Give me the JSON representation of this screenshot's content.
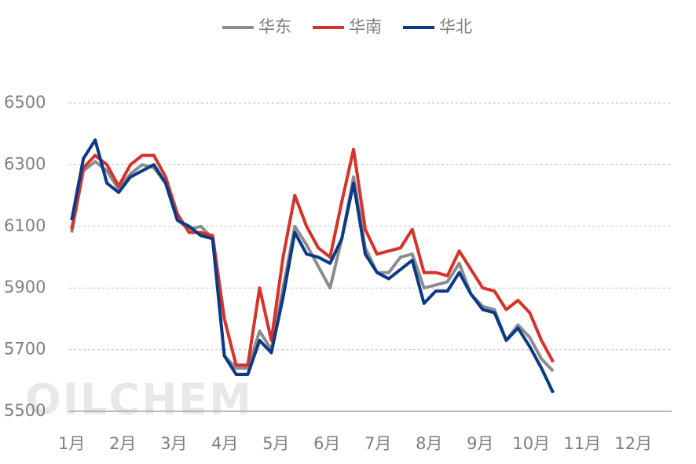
{
  "chart_data": {
    "type": "line",
    "watermark": "OILCHEM",
    "x": [
      1,
      1.23,
      1.46,
      1.69,
      1.92,
      2.15,
      2.38,
      2.61,
      2.84,
      3.07,
      3.3,
      3.53,
      3.76,
      3.99,
      4.22,
      4.45,
      4.68,
      4.91,
      5.14,
      5.37,
      5.6,
      5.83,
      6.06,
      6.29,
      6.52,
      6.75,
      6.98,
      7.21,
      7.44,
      7.67,
      7.9,
      8.13,
      8.36,
      8.59,
      8.82,
      9.05,
      9.28,
      9.51,
      9.74,
      9.97,
      10.2,
      10.43
    ],
    "series": [
      {
        "name": "华东",
        "color": "#8c8c8c",
        "values": [
          6080,
          6280,
          6310,
          6280,
          6220,
          6270,
          6300,
          6290,
          6240,
          6120,
          6090,
          6100,
          6060,
          5680,
          5640,
          5640,
          5760,
          5700,
          5900,
          6100,
          6040,
          5970,
          5900,
          6060,
          6260,
          6030,
          5950,
          5950,
          6000,
          6010,
          5900,
          5910,
          5920,
          5980,
          5880,
          5840,
          5830,
          5730,
          5780,
          5740,
          5670,
          5630
        ]
      },
      {
        "name": "华南",
        "color": "#d7322a",
        "values": [
          6090,
          6290,
          6330,
          6300,
          6230,
          6300,
          6330,
          6330,
          6260,
          6140,
          6080,
          6080,
          6070,
          5800,
          5650,
          5650,
          5900,
          5730,
          6000,
          6200,
          6100,
          6030,
          6000,
          6180,
          6350,
          6090,
          6010,
          6020,
          6030,
          6090,
          5950,
          5950,
          5940,
          6020,
          5960,
          5900,
          5890,
          5830,
          5860,
          5820,
          5730,
          5660
        ]
      },
      {
        "name": "华北",
        "color": "#0a3a86",
        "values": [
          6120,
          6320,
          6380,
          6240,
          6210,
          6260,
          6280,
          6300,
          6240,
          6120,
          6100,
          6070,
          6060,
          5680,
          5620,
          5620,
          5730,
          5690,
          5870,
          6080,
          6010,
          6000,
          5980,
          6060,
          6240,
          6010,
          5950,
          5930,
          5960,
          5990,
          5850,
          5890,
          5890,
          5950,
          5880,
          5830,
          5820,
          5730,
          5770,
          5710,
          5640,
          5560
        ]
      }
    ],
    "xlim": [
      0.95,
      12.75
    ],
    "xticks": [
      {
        "value": 1,
        "label": "1月"
      },
      {
        "value": 2,
        "label": "2月"
      },
      {
        "value": 3,
        "label": "3月"
      },
      {
        "value": 4,
        "label": "4月"
      },
      {
        "value": 5,
        "label": "5月"
      },
      {
        "value": 6,
        "label": "6月"
      },
      {
        "value": 7,
        "label": "7月"
      },
      {
        "value": 8,
        "label": "8月"
      },
      {
        "value": 9,
        "label": "9月"
      },
      {
        "value": 10,
        "label": "10月"
      },
      {
        "value": 11,
        "label": "11月"
      },
      {
        "value": 12,
        "label": "12月"
      }
    ],
    "ylim": [
      5500,
      6500
    ],
    "yticks": [
      5500,
      5700,
      5900,
      6100,
      6300,
      6500
    ],
    "grid": true,
    "legend": "top"
  }
}
